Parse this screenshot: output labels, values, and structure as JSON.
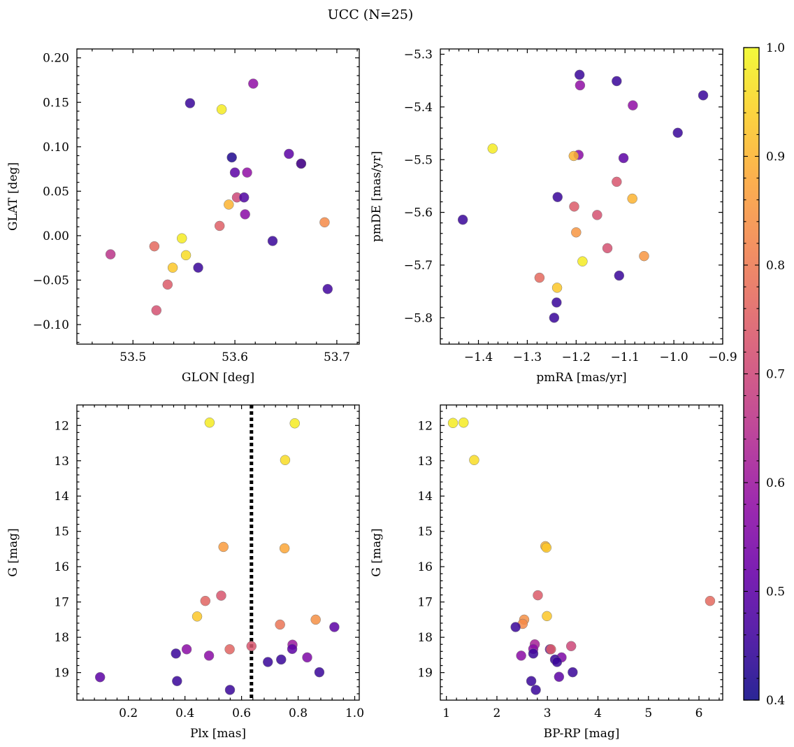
{
  "title": "UCC (N=25)",
  "colorbar": {
    "min": 0.4,
    "max": 1.0,
    "ticks": [
      0.4,
      0.5,
      0.6,
      0.7,
      0.8,
      0.9,
      1.0
    ],
    "tick_labels": [
      "0.4",
      "0.5",
      "0.6",
      "0.7",
      "0.8",
      "0.9",
      "1.0"
    ],
    "colormap": "plasma"
  },
  "chart_data": [
    {
      "type": "scatter",
      "xlabel": "GLON [deg]",
      "ylabel": "GLAT [deg]",
      "xlim": [
        53.445,
        53.722
      ],
      "ylim": [
        -0.122,
        0.21
      ],
      "xticks": [
        53.5,
        53.6,
        53.7
      ],
      "xtick_labels": [
        "53.5",
        "53.6",
        "53.7"
      ],
      "yticks": [
        -0.1,
        -0.05,
        0.0,
        0.05,
        0.1,
        0.15,
        0.2
      ],
      "ytick_labels": [
        "−0.10",
        "−0.05",
        "0.00",
        "0.05",
        "0.10",
        "0.15",
        "0.20"
      ],
      "points": [
        {
          "x": 53.556,
          "y": 0.149,
          "c": 0.45
        },
        {
          "x": 53.587,
          "y": 0.142,
          "c": 0.98
        },
        {
          "x": 53.618,
          "y": 0.171,
          "c": 0.58
        },
        {
          "x": 53.597,
          "y": 0.088,
          "c": 0.42
        },
        {
          "x": 53.653,
          "y": 0.092,
          "c": 0.5
        },
        {
          "x": 53.665,
          "y": 0.081,
          "c": 0.83
        },
        {
          "x": 53.665,
          "y": 0.081,
          "c": 0.45
        },
        {
          "x": 53.6,
          "y": 0.071,
          "c": 0.5
        },
        {
          "x": 53.612,
          "y": 0.071,
          "c": 0.58
        },
        {
          "x": 53.602,
          "y": 0.043,
          "c": 0.7
        },
        {
          "x": 53.609,
          "y": 0.043,
          "c": 0.48
        },
        {
          "x": 53.594,
          "y": 0.035,
          "c": 0.9
        },
        {
          "x": 53.61,
          "y": 0.024,
          "c": 0.57
        },
        {
          "x": 53.585,
          "y": 0.011,
          "c": 0.75
        },
        {
          "x": 53.688,
          "y": 0.015,
          "c": 0.83
        },
        {
          "x": 53.637,
          "y": -0.006,
          "c": 0.45
        },
        {
          "x": 53.548,
          "y": -0.003,
          "c": 0.98
        },
        {
          "x": 53.521,
          "y": -0.012,
          "c": 0.77
        },
        {
          "x": 53.478,
          "y": -0.021,
          "c": 0.66
        },
        {
          "x": 53.552,
          "y": -0.022,
          "c": 0.96
        },
        {
          "x": 53.539,
          "y": -0.036,
          "c": 0.93
        },
        {
          "x": 53.564,
          "y": -0.036,
          "c": 0.45
        },
        {
          "x": 53.534,
          "y": -0.055,
          "c": 0.74
        },
        {
          "x": 53.691,
          "y": -0.06,
          "c": 0.46
        },
        {
          "x": 53.523,
          "y": -0.084,
          "c": 0.72
        }
      ]
    },
    {
      "type": "scatter",
      "xlabel": "pmRA [mas/yr]",
      "ylabel": "pmDE [mas/yr]",
      "xlim": [
        -1.478,
        -0.9
      ],
      "ylim": [
        -5.85,
        -5.29
      ],
      "xticks": [
        -1.4,
        -1.3,
        -1.2,
        -1.1,
        -1.0,
        -0.9
      ],
      "xtick_labels": [
        "−1.4",
        "−1.3",
        "−1.2",
        "−1.1",
        "−1.0",
        "−0.9"
      ],
      "yticks": [
        -5.8,
        -5.7,
        -5.6,
        -5.5,
        -5.4,
        -5.3
      ],
      "ytick_labels": [
        "−5.8",
        "−5.7",
        "−5.6",
        "−5.5",
        "−5.4",
        "−5.3"
      ],
      "points": [
        {
          "x": -1.193,
          "y": -5.339,
          "c": 0.45
        },
        {
          "x": -1.117,
          "y": -5.351,
          "c": 0.45
        },
        {
          "x": -0.94,
          "y": -5.378,
          "c": 0.45
        },
        {
          "x": -1.192,
          "y": -5.359,
          "c": 0.58
        },
        {
          "x": -1.084,
          "y": -5.397,
          "c": 0.58
        },
        {
          "x": -0.992,
          "y": -5.449,
          "c": 0.45
        },
        {
          "x": -1.371,
          "y": -5.479,
          "c": 0.98
        },
        {
          "x": -1.195,
          "y": -5.491,
          "c": 0.57
        },
        {
          "x": -1.205,
          "y": -5.493,
          "c": 0.9
        },
        {
          "x": -1.103,
          "y": -5.497,
          "c": 0.5
        },
        {
          "x": -1.117,
          "y": -5.542,
          "c": 0.73
        },
        {
          "x": -1.085,
          "y": -5.574,
          "c": 0.9
        },
        {
          "x": -1.238,
          "y": -5.571,
          "c": 0.45
        },
        {
          "x": -1.204,
          "y": -5.589,
          "c": 0.74
        },
        {
          "x": -1.157,
          "y": -5.605,
          "c": 0.72
        },
        {
          "x": -1.432,
          "y": -5.614,
          "c": 0.45
        },
        {
          "x": -1.2,
          "y": -5.638,
          "c": 0.85
        },
        {
          "x": -1.136,
          "y": -5.668,
          "c": 0.72
        },
        {
          "x": -1.061,
          "y": -5.683,
          "c": 0.85
        },
        {
          "x": -1.187,
          "y": -5.693,
          "c": 0.98
        },
        {
          "x": -1.112,
          "y": -5.72,
          "c": 0.45
        },
        {
          "x": -1.275,
          "y": -5.724,
          "c": 0.77
        },
        {
          "x": -1.239,
          "y": -5.743,
          "c": 0.93
        },
        {
          "x": -1.24,
          "y": -5.771,
          "c": 0.45
        },
        {
          "x": -1.245,
          "y": -5.8,
          "c": 0.45
        }
      ]
    },
    {
      "type": "scatter",
      "xlabel": "Plx [mas]",
      "ylabel": "G [mag]",
      "xlim": [
        0.018,
        1.016
      ],
      "ylim": [
        19.78,
        11.42
      ],
      "xticks": [
        0.2,
        0.4,
        0.6,
        0.8,
        1.0
      ],
      "xtick_labels": [
        "0.2",
        "0.4",
        "0.6",
        "0.8",
        "1.0"
      ],
      "yticks": [
        12,
        13,
        14,
        15,
        16,
        17,
        18,
        19
      ],
      "ytick_labels": [
        "12",
        "13",
        "14",
        "15",
        "16",
        "17",
        "18",
        "19"
      ],
      "vline": 0.635,
      "points": [
        {
          "x": 0.487,
          "y": 11.92,
          "c": 0.98
        },
        {
          "x": 0.788,
          "y": 11.94,
          "c": 0.98
        },
        {
          "x": 0.754,
          "y": 12.98,
          "c": 0.96
        },
        {
          "x": 0.536,
          "y": 15.44,
          "c": 0.86
        },
        {
          "x": 0.752,
          "y": 15.48,
          "c": 0.88
        },
        {
          "x": 0.528,
          "y": 16.82,
          "c": 0.73
        },
        {
          "x": 0.472,
          "y": 16.97,
          "c": 0.76
        },
        {
          "x": 0.443,
          "y": 17.41,
          "c": 0.93
        },
        {
          "x": 0.862,
          "y": 17.5,
          "c": 0.84
        },
        {
          "x": 0.736,
          "y": 17.64,
          "c": 0.79
        },
        {
          "x": 0.928,
          "y": 17.71,
          "c": 0.5
        },
        {
          "x": 0.78,
          "y": 18.21,
          "c": 0.6
        },
        {
          "x": 0.635,
          "y": 18.25,
          "c": 0.73
        },
        {
          "x": 0.406,
          "y": 18.34,
          "c": 0.57
        },
        {
          "x": 0.558,
          "y": 18.34,
          "c": 0.76
        },
        {
          "x": 0.779,
          "y": 18.33,
          "c": 0.5
        },
        {
          "x": 0.368,
          "y": 18.46,
          "c": 0.45
        },
        {
          "x": 0.485,
          "y": 18.52,
          "c": 0.57
        },
        {
          "x": 0.832,
          "y": 18.57,
          "c": 0.55
        },
        {
          "x": 0.74,
          "y": 18.63,
          "c": 0.45
        },
        {
          "x": 0.693,
          "y": 18.7,
          "c": 0.45
        },
        {
          "x": 0.875,
          "y": 18.99,
          "c": 0.45
        },
        {
          "x": 0.1,
          "y": 19.13,
          "c": 0.5
        },
        {
          "x": 0.372,
          "y": 19.24,
          "c": 0.45
        },
        {
          "x": 0.559,
          "y": 19.49,
          "c": 0.45
        }
      ]
    },
    {
      "type": "scatter",
      "xlabel": "BP-RP [mag]",
      "ylabel": "G [mag]",
      "xlim": [
        0.88,
        6.47
      ],
      "ylim": [
        19.78,
        11.42
      ],
      "xticks": [
        1,
        2,
        3,
        4,
        5,
        6
      ],
      "xtick_labels": [
        "1",
        "2",
        "3",
        "4",
        "5",
        "6"
      ],
      "yticks": [
        12,
        13,
        14,
        15,
        16,
        17,
        18,
        19
      ],
      "ytick_labels": [
        "12",
        "13",
        "14",
        "15",
        "16",
        "17",
        "18",
        "19"
      ],
      "points": [
        {
          "x": 1.13,
          "y": 11.93,
          "c": 0.98
        },
        {
          "x": 1.34,
          "y": 11.92,
          "c": 0.98
        },
        {
          "x": 1.55,
          "y": 12.98,
          "c": 0.96
        },
        {
          "x": 2.96,
          "y": 15.42,
          "c": 0.9
        },
        {
          "x": 2.98,
          "y": 15.46,
          "c": 0.93
        },
        {
          "x": 2.81,
          "y": 16.81,
          "c": 0.74
        },
        {
          "x": 6.22,
          "y": 16.97,
          "c": 0.77
        },
        {
          "x": 2.99,
          "y": 17.4,
          "c": 0.93
        },
        {
          "x": 2.54,
          "y": 17.5,
          "c": 0.84
        },
        {
          "x": 2.51,
          "y": 17.62,
          "c": 0.83
        },
        {
          "x": 2.37,
          "y": 17.71,
          "c": 0.45
        },
        {
          "x": 2.75,
          "y": 18.2,
          "c": 0.62
        },
        {
          "x": 3.47,
          "y": 18.25,
          "c": 0.7
        },
        {
          "x": 3.05,
          "y": 18.34,
          "c": 0.5
        },
        {
          "x": 3.07,
          "y": 18.34,
          "c": 0.75
        },
        {
          "x": 2.72,
          "y": 18.33,
          "c": 0.57
        },
        {
          "x": 2.72,
          "y": 18.46,
          "c": 0.45
        },
        {
          "x": 2.48,
          "y": 18.52,
          "c": 0.57
        },
        {
          "x": 3.28,
          "y": 18.57,
          "c": 0.55
        },
        {
          "x": 3.15,
          "y": 18.63,
          "c": 0.45
        },
        {
          "x": 3.19,
          "y": 18.7,
          "c": 0.45
        },
        {
          "x": 3.5,
          "y": 18.99,
          "c": 0.45
        },
        {
          "x": 3.23,
          "y": 19.12,
          "c": 0.5
        },
        {
          "x": 2.68,
          "y": 19.24,
          "c": 0.45
        },
        {
          "x": 2.77,
          "y": 19.49,
          "c": 0.45
        }
      ]
    }
  ]
}
